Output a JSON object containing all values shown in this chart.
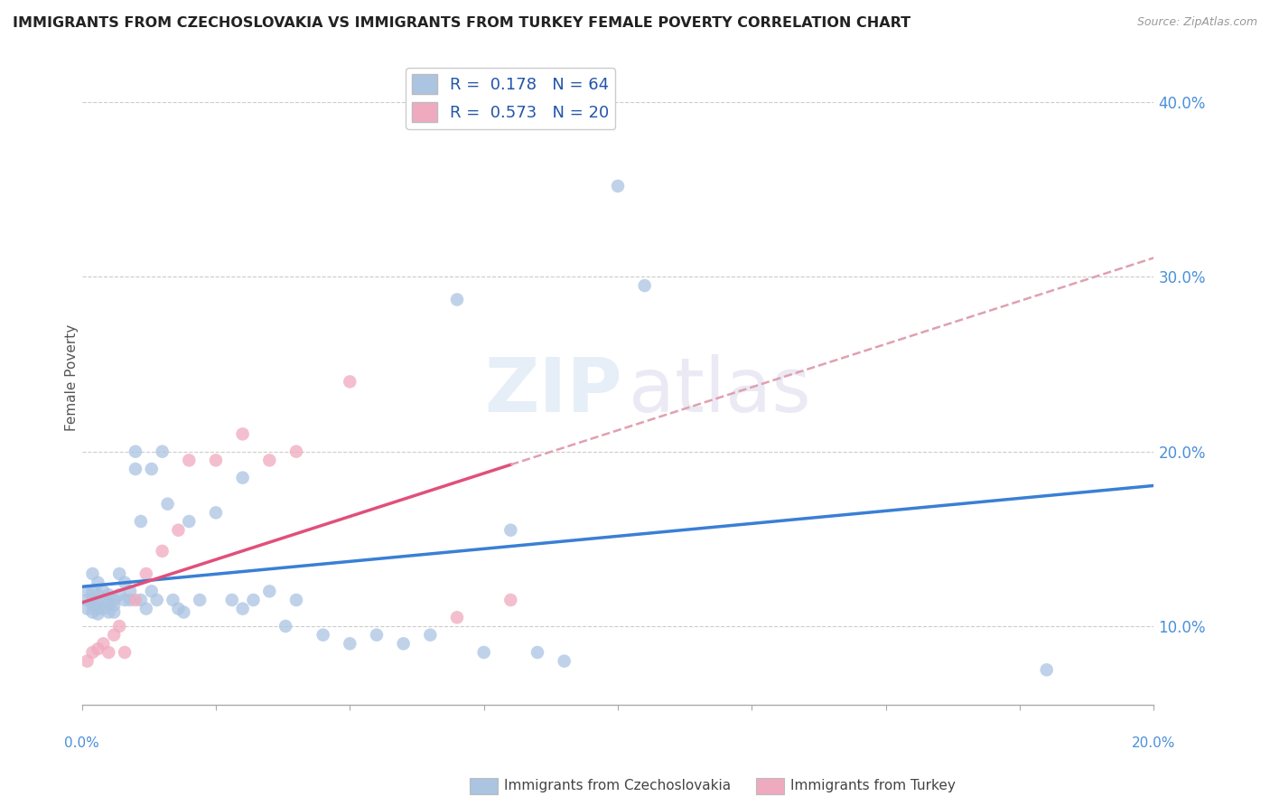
{
  "title": "IMMIGRANTS FROM CZECHOSLOVAKIA VS IMMIGRANTS FROM TURKEY FEMALE POVERTY CORRELATION CHART",
  "source": "Source: ZipAtlas.com",
  "ylabel": "Female Poverty",
  "y_ticks": [
    0.1,
    0.2,
    0.3,
    0.4
  ],
  "y_tick_labels": [
    "10.0%",
    "20.0%",
    "30.0%",
    "40.0%"
  ],
  "xmin": 0.0,
  "xmax": 0.2,
  "ymin": 0.055,
  "ymax": 0.43,
  "r_czech": 0.178,
  "n_czech": 64,
  "r_turkey": 0.573,
  "n_turkey": 20,
  "color_czech": "#aac4e2",
  "color_turkey": "#f0aabf",
  "line_color_czech": "#3a7fd5",
  "line_color_turkey": "#e0507a",
  "line_color_dashed": "#e0a0b0",
  "legend_label_czech": "Immigrants from Czechoslovakia",
  "legend_label_turkey": "Immigrants from Turkey",
  "czech_x": [
    0.001,
    0.001,
    0.001,
    0.002,
    0.002,
    0.002,
    0.002,
    0.002,
    0.003,
    0.003,
    0.003,
    0.003,
    0.003,
    0.004,
    0.004,
    0.004,
    0.005,
    0.005,
    0.005,
    0.006,
    0.006,
    0.006,
    0.007,
    0.007,
    0.008,
    0.008,
    0.009,
    0.009,
    0.01,
    0.01,
    0.011,
    0.011,
    0.012,
    0.013,
    0.013,
    0.014,
    0.015,
    0.016,
    0.017,
    0.018,
    0.019,
    0.02,
    0.022,
    0.025,
    0.028,
    0.03,
    0.03,
    0.032,
    0.035,
    0.038,
    0.04,
    0.045,
    0.05,
    0.055,
    0.06,
    0.065,
    0.07,
    0.075,
    0.08,
    0.085,
    0.09,
    0.1,
    0.105,
    0.18
  ],
  "czech_y": [
    0.12,
    0.115,
    0.11,
    0.13,
    0.12,
    0.115,
    0.112,
    0.108,
    0.125,
    0.118,
    0.113,
    0.11,
    0.107,
    0.12,
    0.115,
    0.11,
    0.118,
    0.113,
    0.108,
    0.115,
    0.112,
    0.108,
    0.13,
    0.118,
    0.125,
    0.115,
    0.12,
    0.115,
    0.2,
    0.19,
    0.16,
    0.115,
    0.11,
    0.19,
    0.12,
    0.115,
    0.2,
    0.17,
    0.115,
    0.11,
    0.108,
    0.16,
    0.115,
    0.165,
    0.115,
    0.185,
    0.11,
    0.115,
    0.12,
    0.1,
    0.115,
    0.095,
    0.09,
    0.095,
    0.09,
    0.095,
    0.287,
    0.085,
    0.155,
    0.085,
    0.08,
    0.352,
    0.295,
    0.075
  ],
  "turkey_x": [
    0.001,
    0.002,
    0.003,
    0.004,
    0.005,
    0.006,
    0.007,
    0.008,
    0.01,
    0.012,
    0.015,
    0.018,
    0.02,
    0.025,
    0.03,
    0.035,
    0.04,
    0.05,
    0.07,
    0.08
  ],
  "turkey_y": [
    0.08,
    0.085,
    0.087,
    0.09,
    0.085,
    0.095,
    0.1,
    0.085,
    0.115,
    0.13,
    0.143,
    0.155,
    0.195,
    0.195,
    0.21,
    0.195,
    0.2,
    0.24,
    0.105,
    0.115
  ]
}
